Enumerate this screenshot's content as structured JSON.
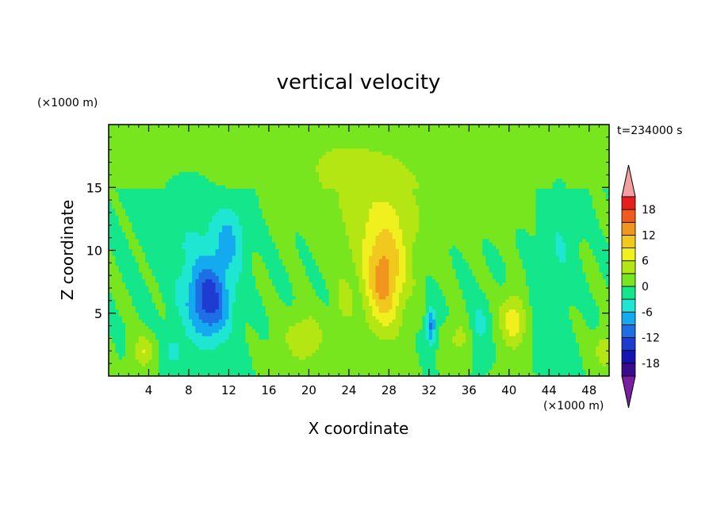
{
  "chart_data": {
    "type": "heatmap",
    "title": "vertical velocity",
    "xlabel": "X coordinate",
    "ylabel": "Z coordinate",
    "x_unit": "(×1000 m)",
    "y_unit": "(×1000 m)",
    "time_label": "t=234000 s",
    "xlim": [
      0,
      50
    ],
    "ylim": [
      0,
      20
    ],
    "x_ticks": [
      4,
      8,
      12,
      16,
      20,
      24,
      28,
      32,
      36,
      40,
      44,
      48
    ],
    "y_ticks": [
      5,
      10,
      15
    ],
    "colorbar": {
      "levels": [
        -21,
        -18,
        -15,
        -12,
        -9,
        -6,
        -3,
        0,
        3,
        6,
        9,
        12,
        15,
        18,
        21
      ],
      "tick_labels": [
        -18,
        -12,
        -6,
        0,
        6,
        12,
        18
      ],
      "colors": [
        "#7a1fa2",
        "#3c0a8c",
        "#1414b4",
        "#1e3cd2",
        "#1e6ee6",
        "#14aaf0",
        "#1ee6d2",
        "#14e68c",
        "#78e61e",
        "#b4e614",
        "#f0f01e",
        "#f0c81e",
        "#f0961e",
        "#f05a1e",
        "#e61e1e",
        "#f5a0a0"
      ]
    },
    "features": [
      {
        "x": 10,
        "z": 6,
        "w": -13,
        "sx": 2.2,
        "sz": 3.2
      },
      {
        "x": 12,
        "z": 11,
        "w": -6,
        "sx": 1.5,
        "sz": 2.5
      },
      {
        "x": 8,
        "z": 11,
        "w": -2.5,
        "sx": 3.5,
        "sz": 5.0
      },
      {
        "x": 27.5,
        "z": 7.5,
        "w": 12,
        "sx": 2.0,
        "sz": 4.0
      },
      {
        "x": 27.5,
        "z": 12,
        "w": 4,
        "sx": 4.5,
        "sz": 4.5
      },
      {
        "x": 26,
        "z": 15,
        "w": 2,
        "sx": 5.5,
        "sz": 4.0
      },
      {
        "x": 32.2,
        "z": 4,
        "w": -10,
        "sx": 0.5,
        "sz": 1.5
      },
      {
        "x": 40.5,
        "z": 4.5,
        "w": 8,
        "sx": 1.4,
        "sz": 2.2
      },
      {
        "x": 19.5,
        "z": 3,
        "w": 5,
        "sx": 2.2,
        "sz": 2.2
      },
      {
        "x": 3.5,
        "z": 2,
        "w": 6,
        "sx": 1.0,
        "sz": 1.3
      },
      {
        "x": 35,
        "z": 3,
        "w": 4,
        "sx": 1.3,
        "sz": 1.6
      },
      {
        "x": 37,
        "z": 4,
        "w": -4,
        "sx": 1.0,
        "sz": 2.0
      },
      {
        "x": 49.5,
        "z": 2,
        "w": 5,
        "sx": 1.0,
        "sz": 1.5
      },
      {
        "x": 23.5,
        "z": 6,
        "w": 3,
        "sx": 1.0,
        "sz": 2.5
      },
      {
        "x": 45,
        "z": 10,
        "w": -3,
        "sx": 1.5,
        "sz": 5.0
      },
      {
        "x": 42.5,
        "z": 6,
        "w": -2.5,
        "sx": 1.2,
        "sz": 2.5
      },
      {
        "x": 6.5,
        "z": 2,
        "w": -4,
        "sx": 1.0,
        "sz": 1.2
      },
      {
        "x": 38,
        "z": 15,
        "w": 1.8,
        "sx": 3.0,
        "sz": 3.0
      },
      {
        "x": 22,
        "z": 17,
        "w": 1.5,
        "sx": 4.0,
        "sz": 2.5
      }
    ]
  }
}
